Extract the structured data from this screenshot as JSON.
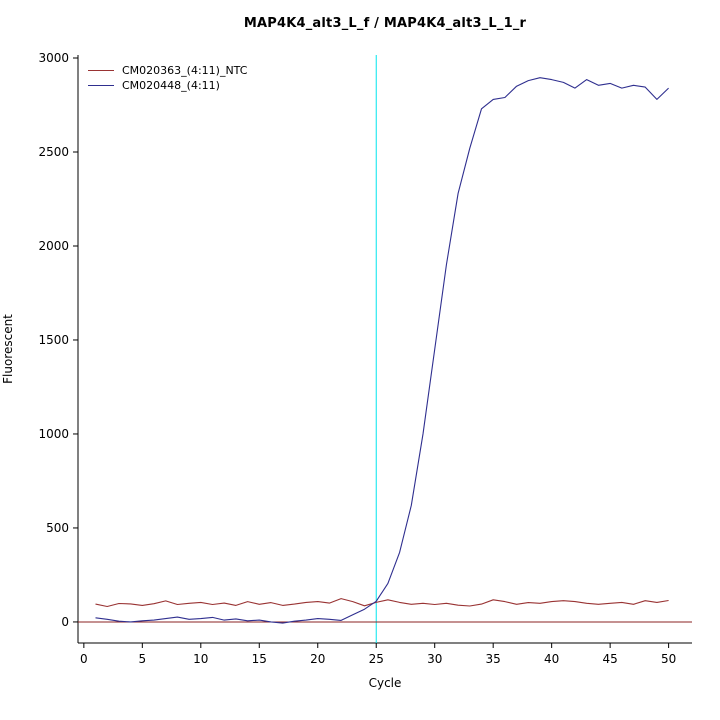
{
  "title": "MAP4K4_alt3_L_f / MAP4K4_alt3_L_1_r",
  "chart_data": {
    "type": "line",
    "title": "MAP4K4_alt3_L_f / MAP4K4_alt3_L_1_r",
    "xlabel": "Cycle",
    "ylabel": "Fluorescent",
    "xlim": [
      -0.5,
      52
    ],
    "ylim": [
      -112,
      3016
    ],
    "x_ticks": [
      0,
      5,
      10,
      15,
      20,
      25,
      30,
      35,
      40,
      45,
      50
    ],
    "y_ticks": [
      0,
      500,
      1000,
      1500,
      2000,
      2500,
      3000
    ],
    "grid": false,
    "legend_position": "top-left",
    "x": [
      1,
      2,
      3,
      4,
      5,
      6,
      7,
      8,
      9,
      10,
      11,
      12,
      13,
      14,
      15,
      16,
      17,
      18,
      19,
      20,
      21,
      22,
      23,
      24,
      25,
      26,
      27,
      28,
      29,
      30,
      31,
      32,
      33,
      34,
      35,
      36,
      37,
      38,
      39,
      40,
      41,
      42,
      43,
      44,
      45,
      46,
      47,
      48,
      49,
      50
    ],
    "series": [
      {
        "name": "CM020363_(4:11)_NTC",
        "color": "#993333",
        "values": [
          95,
          82,
          98,
          96,
          88,
          97,
          112,
          93,
          99,
          104,
          93,
          100,
          88,
          108,
          94,
          103,
          88,
          95,
          104,
          108,
          100,
          124,
          108,
          86,
          104,
          118,
          104,
          94,
          99,
          93,
          99,
          89,
          85,
          95,
          118,
          108,
          94,
          103,
          99,
          108,
          113,
          108,
          99,
          94,
          99,
          104,
          94,
          113,
          104,
          114
        ]
      },
      {
        "name": "CM020448_(4:11)",
        "color": "#2f2f8f",
        "values": [
          22,
          14,
          4,
          0,
          6,
          10,
          18,
          26,
          14,
          18,
          24,
          10,
          16,
          6,
          10,
          0,
          -6,
          4,
          10,
          18,
          14,
          8,
          38,
          68,
          110,
          205,
          370,
          620,
          1000,
          1450,
          1900,
          2280,
          2520,
          2730,
          2780,
          2790,
          2850,
          2880,
          2895,
          2885,
          2870,
          2840,
          2885,
          2855,
          2865,
          2840,
          2855,
          2845,
          2780,
          2840
        ]
      }
    ],
    "reference_lines": {
      "vertical_threshold_cycle": {
        "x": 25,
        "color": "#00e5ee"
      },
      "horizontal_baseline": {
        "y": 0,
        "color": "#8b2323"
      }
    },
    "axis_color": "#000000"
  }
}
